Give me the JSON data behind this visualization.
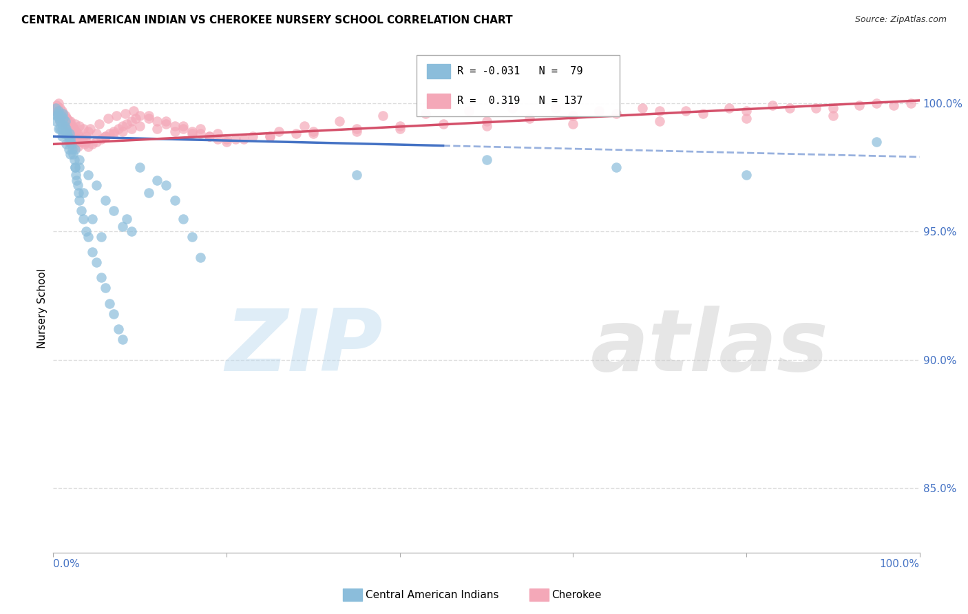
{
  "title": "CENTRAL AMERICAN INDIAN VS CHEROKEE NURSERY SCHOOL CORRELATION CHART",
  "source": "Source: ZipAtlas.com",
  "ylabel": "Nursery School",
  "y_ticks": [
    85.0,
    90.0,
    95.0,
    100.0
  ],
  "x_range": [
    0.0,
    100.0
  ],
  "y_range": [
    82.5,
    101.5
  ],
  "blue_color": "#8BBDDB",
  "pink_color": "#F4A8B8",
  "blue_line_color": "#4472C4",
  "pink_line_color": "#D4506A",
  "grid_color": "#DDDDDD",
  "title_fontsize": 11,
  "source_fontsize": 9,
  "blue_scatter_x": [
    0.3,
    0.4,
    0.5,
    0.6,
    0.7,
    0.8,
    0.9,
    1.0,
    1.1,
    1.2,
    1.3,
    1.4,
    1.5,
    1.6,
    1.7,
    1.8,
    1.9,
    2.0,
    2.1,
    2.2,
    2.3,
    2.4,
    2.5,
    2.6,
    2.7,
    2.8,
    2.9,
    3.0,
    3.2,
    3.5,
    3.8,
    4.0,
    4.5,
    5.0,
    5.5,
    6.0,
    6.5,
    7.0,
    7.5,
    8.0,
    8.5,
    9.0,
    10.0,
    11.0,
    12.0,
    13.0,
    14.0,
    15.0,
    16.0,
    17.0,
    1.0,
    1.5,
    2.0,
    2.5,
    3.0,
    4.0,
    5.0,
    6.0,
    7.0,
    8.0,
    0.5,
    0.8,
    1.2,
    1.8,
    2.5,
    3.5,
    4.5,
    5.5,
    35.0,
    50.0,
    65.0,
    80.0,
    95.0,
    0.3,
    0.6,
    1.0,
    1.5,
    2.0,
    3.0
  ],
  "blue_scatter_y": [
    99.8,
    99.5,
    99.6,
    99.7,
    99.4,
    99.3,
    99.5,
    99.2,
    99.6,
    99.4,
    99.1,
    99.3,
    99.0,
    98.9,
    98.7,
    98.5,
    98.8,
    98.6,
    98.4,
    98.2,
    98.0,
    97.8,
    97.5,
    97.2,
    97.0,
    96.8,
    96.5,
    96.2,
    95.8,
    95.5,
    95.0,
    94.8,
    94.2,
    93.8,
    93.2,
    92.8,
    92.2,
    91.8,
    91.2,
    90.8,
    95.5,
    95.0,
    97.5,
    96.5,
    97.0,
    96.8,
    96.2,
    95.5,
    94.8,
    94.0,
    99.0,
    98.8,
    98.5,
    98.2,
    97.8,
    97.2,
    96.8,
    96.2,
    95.8,
    95.2,
    99.5,
    99.0,
    98.8,
    98.2,
    97.5,
    96.5,
    95.5,
    94.8,
    97.2,
    97.8,
    97.5,
    97.2,
    98.5,
    99.3,
    99.0,
    98.7,
    98.4,
    98.0,
    97.5
  ],
  "pink_scatter_x": [
    0.3,
    0.4,
    0.5,
    0.6,
    0.7,
    0.8,
    0.9,
    1.0,
    1.1,
    1.2,
    1.3,
    1.4,
    1.5,
    1.6,
    1.7,
    1.8,
    1.9,
    2.0,
    2.1,
    2.2,
    2.3,
    2.4,
    2.5,
    2.6,
    2.7,
    2.8,
    2.9,
    3.0,
    3.2,
    3.4,
    3.6,
    3.8,
    4.0,
    4.5,
    5.0,
    5.5,
    6.0,
    6.5,
    7.0,
    7.5,
    8.0,
    8.5,
    9.0,
    9.5,
    10.0,
    11.0,
    12.0,
    13.0,
    14.0,
    15.0,
    16.0,
    17.0,
    18.0,
    19.0,
    20.0,
    22.0,
    25.0,
    28.0,
    30.0,
    35.0,
    40.0,
    45.0,
    50.0,
    55.0,
    60.0,
    65.0,
    70.0,
    75.0,
    80.0,
    85.0,
    90.0,
    93.0,
    95.0,
    97.0,
    99.0,
    0.5,
    1.0,
    1.5,
    2.0,
    2.5,
    3.0,
    3.5,
    4.0,
    5.0,
    6.0,
    7.0,
    8.0,
    9.0,
    10.0,
    12.0,
    14.0,
    16.0,
    18.0,
    20.0,
    25.0,
    30.0,
    35.0,
    40.0,
    50.0,
    60.0,
    70.0,
    80.0,
    90.0,
    0.8,
    1.3,
    1.8,
    2.3,
    2.8,
    3.3,
    3.8,
    4.3,
    5.3,
    6.3,
    7.3,
    8.3,
    9.3,
    11.0,
    13.0,
    15.0,
    17.0,
    19.0,
    21.0,
    23.0,
    26.0,
    29.0,
    33.0,
    38.0,
    43.0,
    48.0,
    53.0,
    58.0,
    63.0,
    68.0,
    73.0,
    78.0,
    83.0,
    88.0
  ],
  "pink_scatter_y": [
    99.8,
    99.9,
    99.7,
    100.0,
    99.6,
    99.8,
    99.5,
    99.7,
    99.4,
    99.6,
    99.3,
    99.5,
    99.2,
    99.4,
    99.1,
    99.3,
    99.0,
    99.2,
    98.9,
    99.1,
    98.8,
    99.0,
    98.7,
    98.9,
    98.6,
    98.8,
    98.5,
    98.7,
    98.5,
    98.6,
    98.4,
    98.5,
    98.3,
    98.4,
    98.5,
    98.6,
    98.7,
    98.8,
    98.9,
    99.0,
    99.1,
    99.2,
    99.3,
    99.4,
    99.5,
    99.4,
    99.3,
    99.2,
    99.1,
    99.0,
    98.9,
    98.8,
    98.7,
    98.6,
    98.5,
    98.6,
    98.7,
    98.8,
    98.9,
    99.0,
    99.1,
    99.2,
    99.3,
    99.4,
    99.5,
    99.6,
    99.7,
    99.6,
    99.7,
    99.8,
    99.8,
    99.9,
    100.0,
    99.9,
    100.0,
    99.6,
    99.5,
    99.4,
    99.3,
    99.2,
    99.1,
    99.0,
    98.9,
    98.8,
    98.7,
    98.8,
    98.9,
    99.0,
    99.1,
    99.0,
    98.9,
    98.8,
    98.7,
    98.6,
    98.7,
    98.8,
    98.9,
    99.0,
    99.1,
    99.2,
    99.3,
    99.4,
    99.5,
    99.3,
    99.0,
    98.7,
    98.4,
    98.3,
    98.5,
    98.7,
    99.0,
    99.2,
    99.4,
    99.5,
    99.6,
    99.7,
    99.5,
    99.3,
    99.1,
    99.0,
    98.8,
    98.6,
    98.7,
    98.9,
    99.1,
    99.3,
    99.5,
    99.6,
    99.7,
    99.8,
    99.8,
    99.7,
    99.8,
    99.7,
    99.8,
    99.9,
    99.8
  ],
  "blue_trend_x0": 0.0,
  "blue_trend_y0": 98.7,
  "blue_trend_x1": 100.0,
  "blue_trend_y1": 97.9,
  "blue_solid_end": 45.0,
  "pink_trend_x0": 0.0,
  "pink_trend_y0": 98.4,
  "pink_trend_x1": 100.0,
  "pink_trend_y1": 100.1,
  "watermark_zip": "ZIP",
  "watermark_atlas": "atlas",
  "bottom_legend_left": "Central American Indians",
  "bottom_legend_right": "Cherokee"
}
